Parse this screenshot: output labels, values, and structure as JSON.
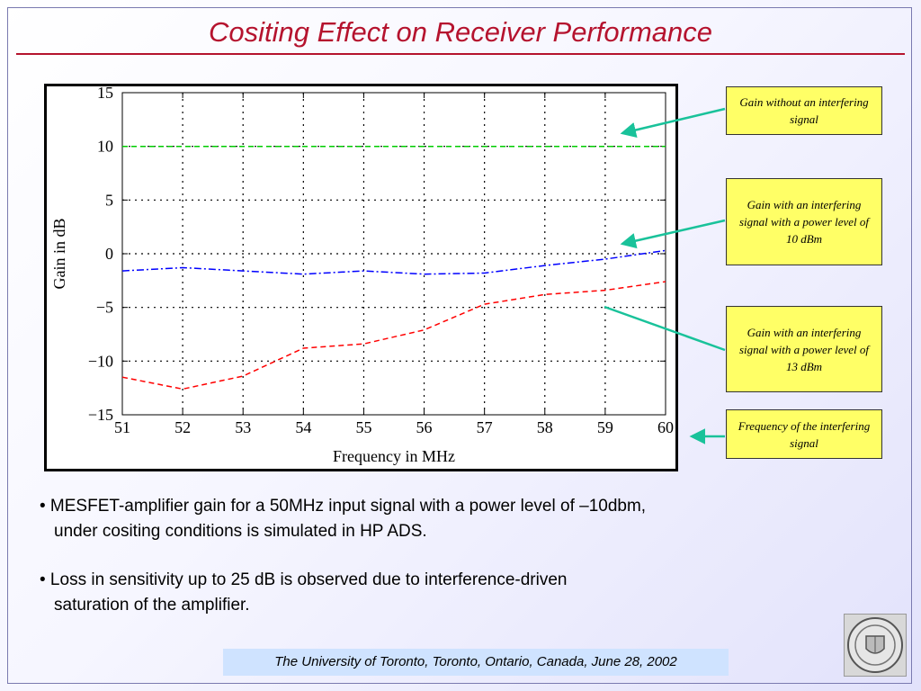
{
  "title": "Cositing Effect on Receiver Performance",
  "callouts": [
    {
      "text": "Gain without an interfering signal"
    },
    {
      "text": "Gain with an interfering signal with a power level of 10 dBm"
    },
    {
      "text": "Gain with an interfering signal with a power level of 13 dBm"
    },
    {
      "text": "Frequency of the interfering signal"
    }
  ],
  "bullets": [
    {
      "line1": "• MESFET-amplifier gain for a 50MHz input signal with a power level of –10dbm,",
      "line2": "under cositing conditions is simulated in HP ADS."
    },
    {
      "line1": "• Loss in sensitivity up to 25 dB is observed due to interference-driven",
      "line2": "saturation of the amplifier."
    }
  ],
  "footer": "The University of Toronto, Toronto, Ontario, Canada, June 28, 2002",
  "colors": {
    "title": "#b5132e",
    "callout_bg": "#ffff66",
    "arrow": "#19c29a",
    "footer_bg": "#cfe3ff"
  },
  "chart_data": {
    "type": "line",
    "xlabel": "Frequency in MHz",
    "ylabel": "Gain in dB",
    "xlim": [
      51,
      60
    ],
    "ylim": [
      -15,
      15
    ],
    "x_ticks": [
      51,
      52,
      53,
      54,
      55,
      56,
      57,
      58,
      59,
      60
    ],
    "y_ticks": [
      15,
      10,
      5,
      0,
      -5,
      -10,
      -15
    ],
    "y_tick_labels": [
      "15",
      "10",
      "5",
      "0",
      "−5",
      "−10",
      "−15"
    ],
    "grid": true,
    "series": [
      {
        "color": "#00cc00",
        "style": "dashed",
        "x": [
          51,
          52,
          53,
          54,
          55,
          56,
          57,
          58,
          59,
          60
        ],
        "y": [
          10,
          10,
          10,
          10,
          10,
          10,
          10,
          10,
          10,
          10
        ]
      },
      {
        "color": "#0000ff",
        "style": "dashdot",
        "x": [
          51,
          52,
          53,
          54,
          55,
          56,
          57,
          58,
          59,
          60
        ],
        "y": [
          -1.6,
          -1.3,
          -1.6,
          -1.9,
          -1.6,
          -1.9,
          -1.8,
          -1.1,
          -0.5,
          0.3
        ]
      },
      {
        "color": "#ff0000",
        "style": "dashed",
        "x": [
          51,
          52,
          53,
          54,
          55,
          56,
          57,
          58,
          59,
          60
        ],
        "y": [
          -11.5,
          -12.6,
          -11.4,
          -8.8,
          -8.4,
          -7.1,
          -4.7,
          -3.8,
          -3.4,
          -2.6
        ]
      }
    ]
  }
}
